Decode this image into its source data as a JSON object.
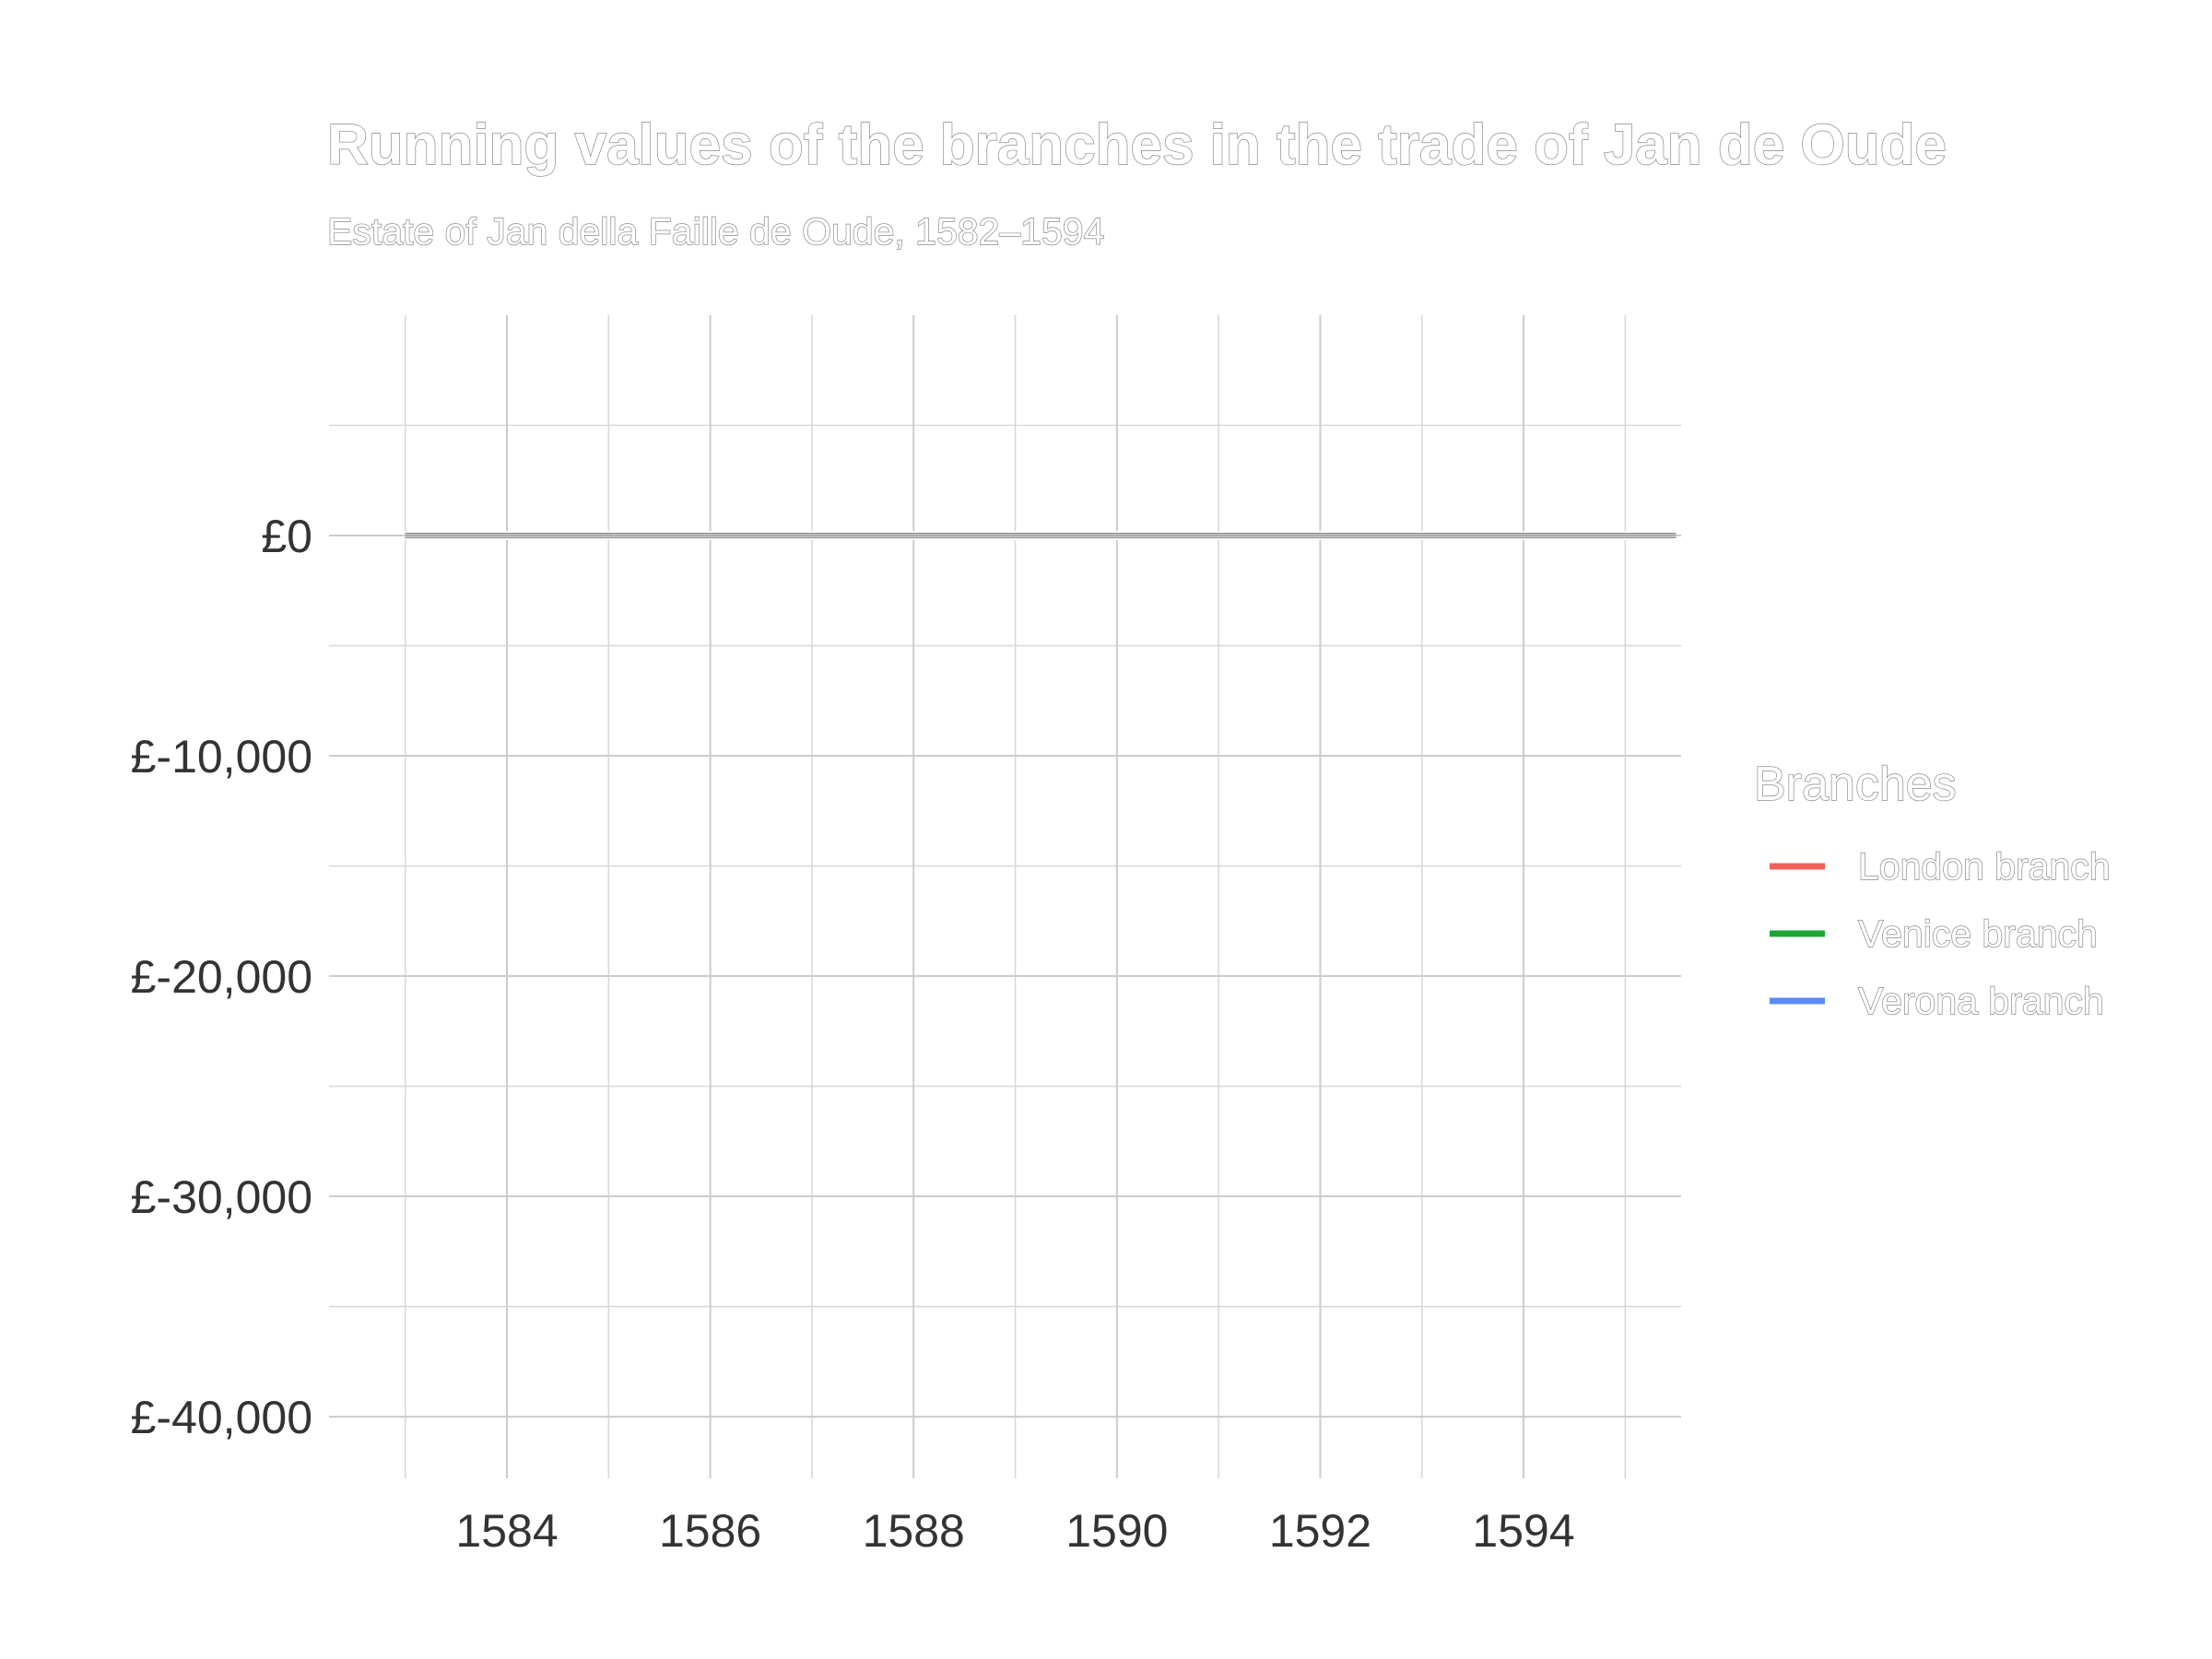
{
  "chart_data": {
    "type": "line",
    "title": "Running values of the branches in the trade of Jan de Oude",
    "subtitle": "Estate of Jan della Faille de Oude, 1582–1594",
    "xlabel": "",
    "ylabel": "",
    "x_ticks": [
      1584,
      1586,
      1588,
      1590,
      1592,
      1594
    ],
    "y_ticks": [
      0,
      -10000,
      -20000,
      -30000,
      -40000
    ],
    "y_tick_labels": [
      "£0",
      "£-10,000",
      "£-20,000",
      "£-30,000",
      "£-40,000"
    ],
    "xlim": [
      1582.25,
      1595.55
    ],
    "ylim": [
      -42800,
      10000
    ],
    "grid": true,
    "legend": {
      "title": "Branches",
      "placement": "right"
    },
    "series": [
      {
        "name": "London branch",
        "color": "#f0625c",
        "x": [
          1583,
          1595.5
        ],
        "values": [
          0,
          0
        ]
      },
      {
        "name": "Venice branch",
        "color": "#1aa832",
        "x": [
          1583,
          1595.5
        ],
        "values": [
          0,
          0
        ]
      },
      {
        "name": "Verona branch",
        "color": "#5b8bf6",
        "x": [
          1583,
          1595.5
        ],
        "values": [
          0,
          0
        ]
      }
    ]
  }
}
